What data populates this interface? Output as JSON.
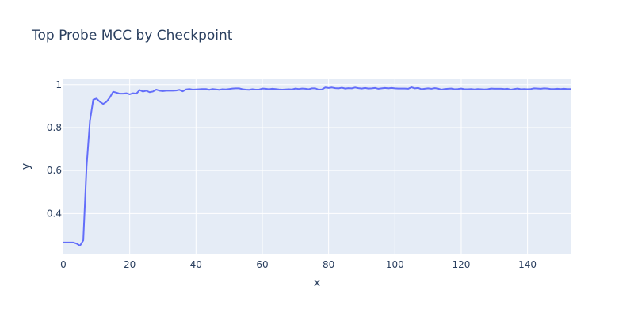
{
  "chart_data": {
    "type": "line",
    "title": "Top Probe MCC by Checkpoint",
    "xlabel": "x",
    "ylabel": "y",
    "xlim": [
      0,
      153
    ],
    "ylim": [
      0.213,
      1.025
    ],
    "x_ticks": [
      0,
      20,
      40,
      60,
      80,
      100,
      120,
      140
    ],
    "y_ticks": [
      0.4,
      0.6,
      0.8,
      1
    ],
    "y_tick_labels": [
      "0.4",
      "0.6",
      "0.8",
      "1"
    ],
    "grid": true,
    "background_color": "#e5ecf6",
    "line_color": "#636efa",
    "x": [
      0,
      1,
      2,
      3,
      4,
      5,
      6,
      7,
      8,
      9,
      10,
      11,
      12,
      13,
      14,
      15,
      16,
      17,
      18,
      19,
      20,
      21,
      22,
      23,
      24,
      25,
      26,
      27,
      28,
      29,
      30,
      31,
      32,
      33,
      34,
      35,
      36,
      37,
      38,
      39,
      40,
      41,
      42,
      43,
      44,
      45,
      46,
      47,
      48,
      49,
      50,
      51,
      52,
      53,
      54,
      55,
      56,
      57,
      58,
      59,
      60,
      61,
      62,
      63,
      64,
      65,
      66,
      67,
      68,
      69,
      70,
      71,
      72,
      73,
      74,
      75,
      76,
      77,
      78,
      79,
      80,
      81,
      82,
      83,
      84,
      85,
      86,
      87,
      88,
      89,
      90,
      91,
      92,
      93,
      94,
      95,
      96,
      97,
      98,
      99,
      100,
      101,
      102,
      103,
      104,
      105,
      106,
      107,
      108,
      109,
      110,
      111,
      112,
      113,
      114,
      115,
      116,
      117,
      118,
      119,
      120,
      121,
      122,
      123,
      124,
      125,
      126,
      127,
      128,
      129,
      130,
      131,
      132,
      133,
      134,
      135,
      136,
      137,
      138,
      139,
      140,
      141,
      142,
      143,
      144,
      145,
      146,
      147,
      148,
      149,
      150,
      151,
      152,
      153
    ],
    "y": [
      0.265,
      0.265,
      0.265,
      0.265,
      0.26,
      0.25,
      0.275,
      0.62,
      0.83,
      0.93,
      0.935,
      0.92,
      0.91,
      0.92,
      0.94,
      0.967,
      0.963,
      0.958,
      0.958,
      0.96,
      0.955,
      0.96,
      0.958,
      0.975,
      0.968,
      0.972,
      0.965,
      0.968,
      0.977,
      0.972,
      0.97,
      0.972,
      0.972,
      0.972,
      0.973,
      0.976,
      0.969,
      0.978,
      0.98,
      0.977,
      0.978,
      0.979,
      0.98,
      0.98,
      0.976,
      0.98,
      0.978,
      0.976,
      0.979,
      0.978,
      0.98,
      0.982,
      0.983,
      0.983,
      0.979,
      0.977,
      0.976,
      0.979,
      0.977,
      0.977,
      0.982,
      0.981,
      0.979,
      0.981,
      0.98,
      0.978,
      0.977,
      0.978,
      0.979,
      0.978,
      0.982,
      0.98,
      0.982,
      0.981,
      0.979,
      0.983,
      0.983,
      0.977,
      0.978,
      0.987,
      0.985,
      0.987,
      0.984,
      0.983,
      0.986,
      0.982,
      0.984,
      0.983,
      0.987,
      0.984,
      0.982,
      0.985,
      0.982,
      0.983,
      0.985,
      0.981,
      0.983,
      0.985,
      0.983,
      0.985,
      0.983,
      0.982,
      0.982,
      0.982,
      0.981,
      0.988,
      0.983,
      0.985,
      0.979,
      0.981,
      0.983,
      0.981,
      0.984,
      0.982,
      0.977,
      0.98,
      0.981,
      0.982,
      0.979,
      0.98,
      0.982,
      0.979,
      0.979,
      0.98,
      0.978,
      0.98,
      0.979,
      0.978,
      0.979,
      0.982,
      0.981,
      0.981,
      0.981,
      0.98,
      0.981,
      0.977,
      0.98,
      0.982,
      0.979,
      0.98,
      0.979,
      0.98,
      0.983,
      0.982,
      0.981,
      0.983,
      0.982,
      0.98,
      0.98,
      0.981,
      0.98,
      0.981,
      0.98,
      0.98
    ]
  }
}
